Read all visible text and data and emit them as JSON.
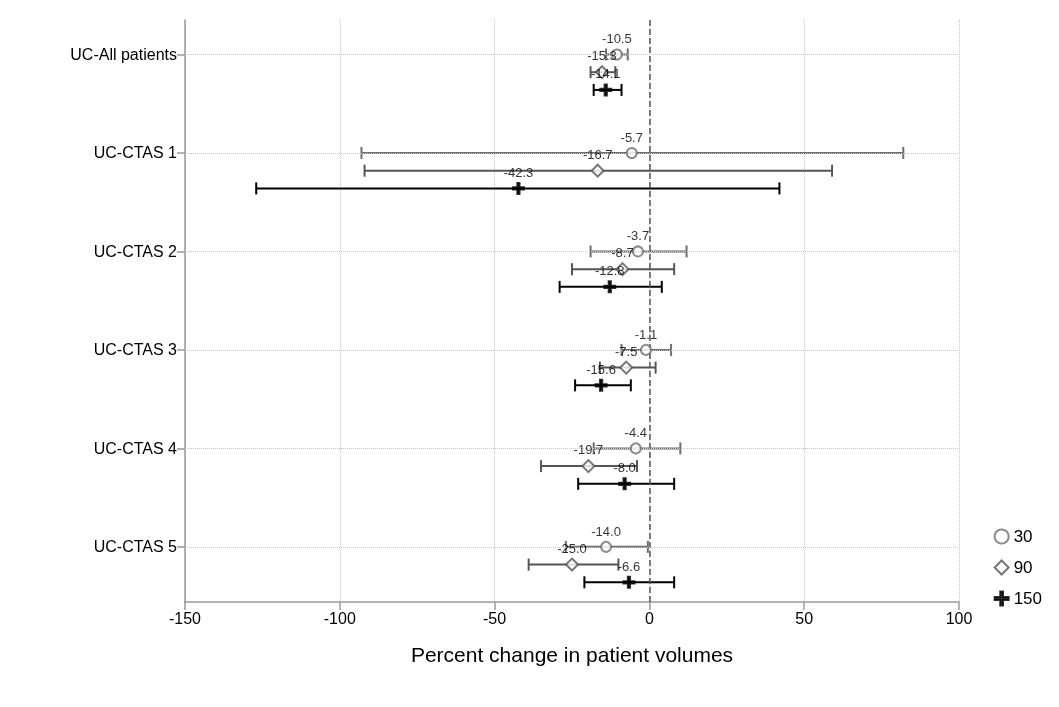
{
  "chart_data": {
    "type": "scatter",
    "orientation": "horizontal",
    "categories": [
      "UC-All patients",
      "UC-CTAS 1",
      "UC-CTAS 2",
      "UC-CTAS 3",
      "UC-CTAS 4",
      "UC-CTAS 5"
    ],
    "xlabel": "Percent change in patient volumes",
    "series": [
      {
        "name": "30",
        "color": "#6e6e6e",
        "marker": "circle",
        "values": [
          -10.5,
          -5.7,
          -3.7,
          -1.1,
          -4.4,
          -14.0
        ],
        "value_labels": [
          "-10.5",
          "-5.7",
          "-3.7",
          "-1.1",
          "-4.4",
          "-14.0"
        ],
        "errors": [
          [
            -14,
            -7
          ],
          [
            -93,
            82
          ],
          [
            -19,
            12
          ],
          [
            -9,
            7
          ],
          [
            -18,
            10
          ],
          [
            -27,
            -0.5
          ]
        ]
      },
      {
        "name": "90",
        "color": "#555555",
        "marker": "diamond",
        "values": [
          -15.3,
          -16.7,
          -8.7,
          -7.5,
          -19.7,
          -25.0
        ],
        "value_labels": [
          "-15.3",
          "-16.7",
          "-8.7",
          "-7.5",
          "-19.7",
          "-25.0"
        ],
        "errors": [
          [
            -19,
            -11
          ],
          [
            -92,
            59
          ],
          [
            -25,
            8
          ],
          [
            -16,
            2
          ],
          [
            -35,
            -4
          ],
          [
            -39,
            -10
          ]
        ]
      },
      {
        "name": "150",
        "color": "#000000",
        "marker": "cross",
        "values": [
          -14.1,
          -42.3,
          -12.8,
          -15.6,
          -8.0,
          -6.6
        ],
        "value_labels": [
          "-14.1",
          "-42.3",
          "-12.8",
          "-15.6",
          "-8.0",
          "-6.6"
        ],
        "errors": [
          [
            -18,
            -9
          ],
          [
            -127,
            42
          ],
          [
            -29,
            4
          ],
          [
            -24,
            -6
          ],
          [
            -23,
            8
          ],
          [
            -21,
            8
          ]
        ]
      }
    ],
    "xlim": [
      -150,
      100
    ],
    "xticks": [
      -150,
      -100,
      -50,
      0,
      50,
      100
    ],
    "ref_lines": [
      {
        "axis": "x",
        "value": 0,
        "line_style": "dashed",
        "color": "#555555"
      }
    ],
    "grid": true,
    "legend": "bottom right"
  }
}
